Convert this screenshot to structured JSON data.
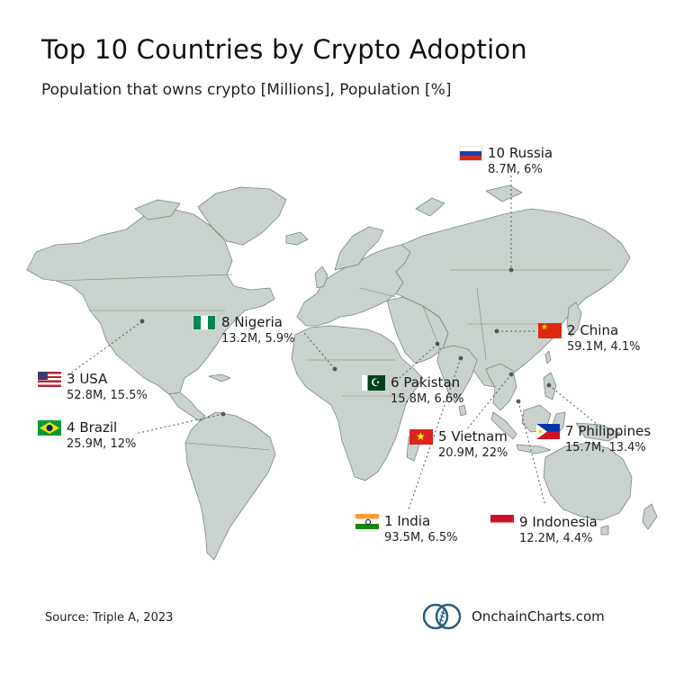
{
  "title": "Top 10 Countries by Crypto Adoption",
  "subtitle": "Population that owns crypto [Millions], Population [%]",
  "source": "Source: Triple A, 2023",
  "brand": "OnchainCharts.com",
  "colors": {
    "land": "#c9d2cc",
    "border": "#7d8780",
    "leader": "#555555"
  },
  "countries": [
    {
      "rank": "1",
      "name": "India",
      "owners": "93.5M",
      "percent": "6.5%",
      "flag": "india-flag"
    },
    {
      "rank": "2",
      "name": "China",
      "owners": "59.1M",
      "percent": "4.1%",
      "flag": "china-flag"
    },
    {
      "rank": "3",
      "name": "USA",
      "owners": "52.8M",
      "percent": "15.5%",
      "flag": "usa-flag"
    },
    {
      "rank": "4",
      "name": "Brazil",
      "owners": "25.9M",
      "percent": "12%",
      "flag": "brazil-flag"
    },
    {
      "rank": "5",
      "name": "Vietnam",
      "owners": "20.9M",
      "percent": "22%",
      "flag": "vietnam-flag"
    },
    {
      "rank": "6",
      "name": "Pakistan",
      "owners": "15.8M",
      "percent": "6.6%",
      "flag": "pakistan-flag"
    },
    {
      "rank": "7",
      "name": "Philippines",
      "owners": "15.7M",
      "percent": "13.4%",
      "flag": "philippines-flag"
    },
    {
      "rank": "8",
      "name": "Nigeria",
      "owners": "13.2M",
      "percent": "5.9%",
      "flag": "nigeria-flag"
    },
    {
      "rank": "9",
      "name": "Indonesia",
      "owners": "12.2M",
      "percent": "4.4%",
      "flag": "indonesia-flag"
    },
    {
      "rank": "10",
      "name": "Russia",
      "owners": "8.7M",
      "percent": "6%",
      "flag": "russia-flag"
    }
  ]
}
